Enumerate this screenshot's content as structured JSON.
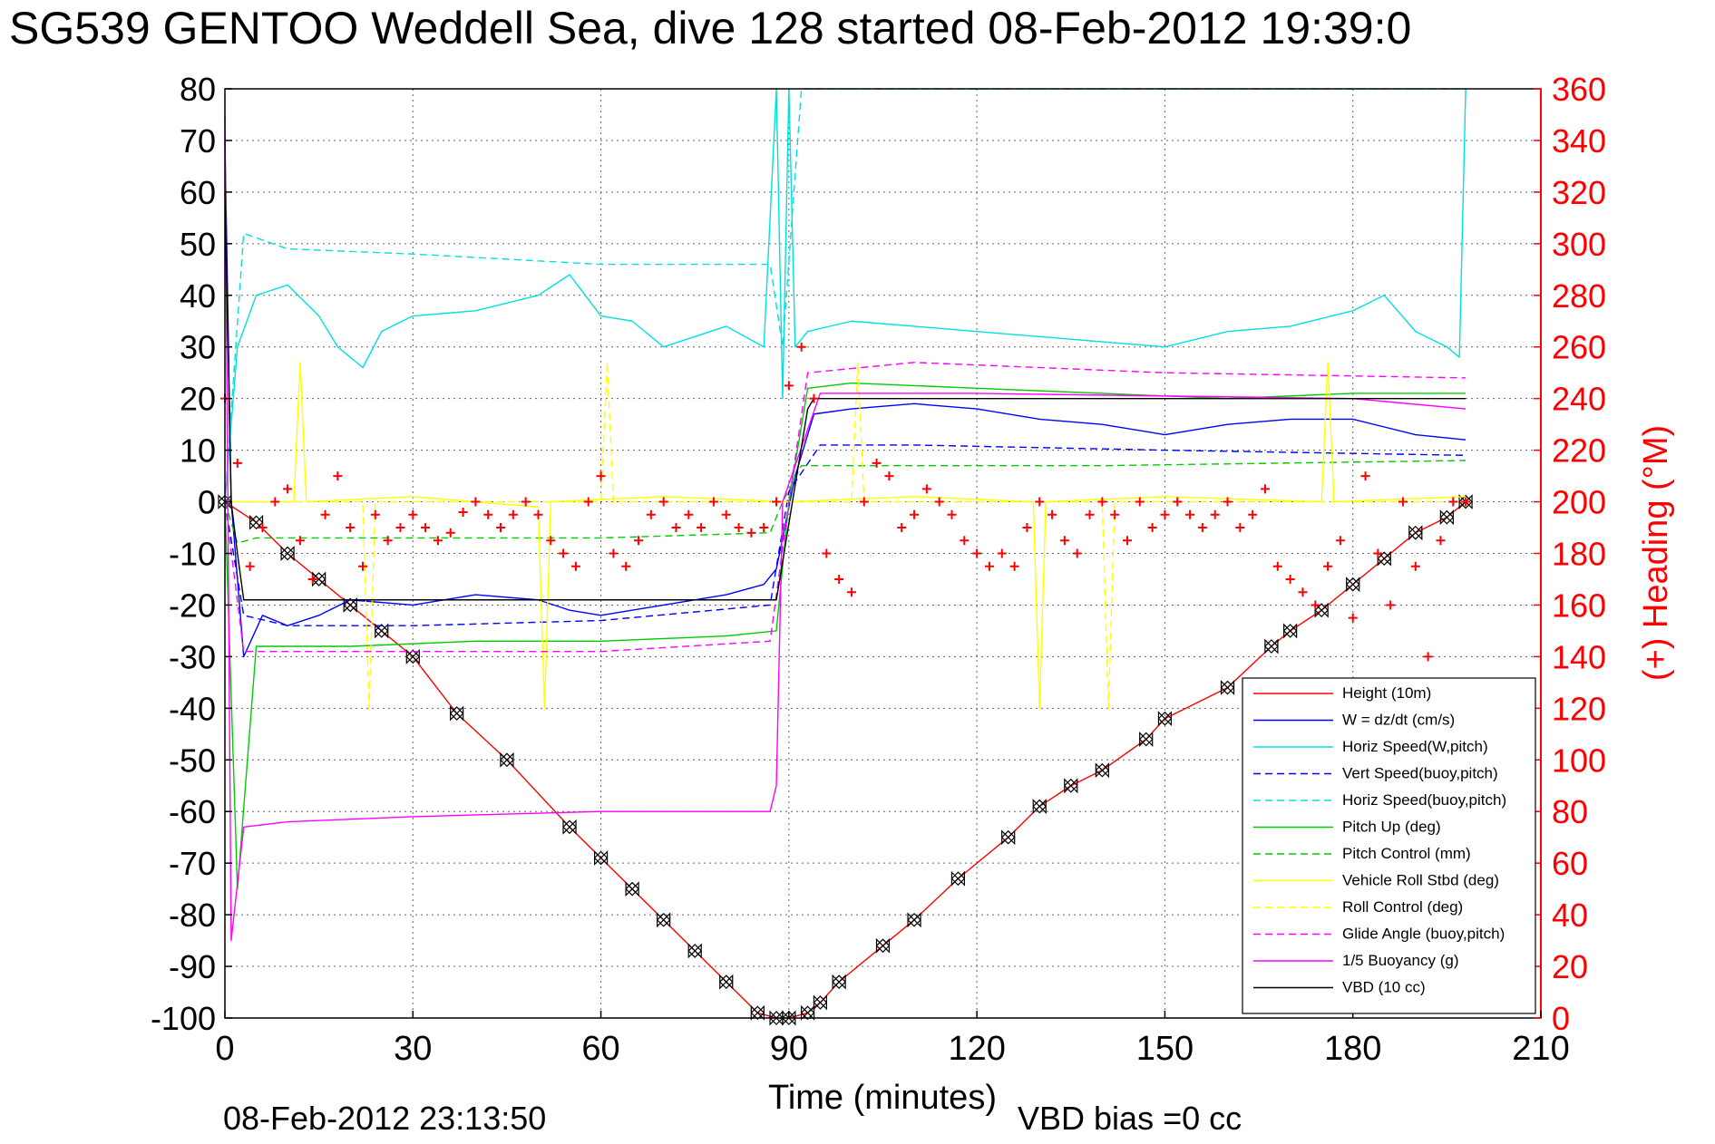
{
  "chart_data": {
    "type": "line",
    "title": "SG539 GENTOO Weddell Sea, dive 128 started 08-Feb-2012 19:39:0",
    "xlabel": "Time (minutes)",
    "ylabel_right": "(+) Heading (°M)",
    "footer_left": "08-Feb-2012 23:13:50",
    "footer_right": "VBD bias =0 cc",
    "xlim": [
      0,
      210
    ],
    "ylim": [
      -100,
      80
    ],
    "y2lim": [
      0,
      360
    ],
    "xticks": [
      "0",
      "30",
      "60",
      "90",
      "120",
      "150",
      "180",
      "210"
    ],
    "yticks": [
      "80",
      "70",
      "60",
      "50",
      "40",
      "30",
      "20",
      "10",
      "0",
      "-10",
      "-20",
      "-30",
      "-40",
      "-50",
      "-60",
      "-70",
      "-80",
      "-90",
      "-100"
    ],
    "y2ticks": [
      "360",
      "340",
      "320",
      "300",
      "280",
      "260",
      "240",
      "220",
      "200",
      "180",
      "160",
      "140",
      "120",
      "100",
      "80",
      "60",
      "40",
      "20",
      "0"
    ],
    "grid": true,
    "legend_position": "bottom-right",
    "series": [
      {
        "name": "Height (10m)",
        "color": "#ff0000",
        "dash": "solid",
        "marker": "bowtie",
        "x": [
          0,
          5,
          10,
          15,
          20,
          25,
          30,
          37,
          45,
          55,
          60,
          65,
          70,
          75,
          80,
          85,
          88,
          90,
          93,
          95,
          98,
          105,
          110,
          117,
          125,
          130,
          135,
          140,
          147,
          150,
          160,
          167,
          170,
          175,
          180,
          185,
          190,
          195,
          198
        ],
        "y": [
          0,
          -4,
          -10,
          -15,
          -20,
          -25,
          -30,
          -41,
          -50,
          -63,
          -69,
          -75,
          -81,
          -87,
          -93,
          -99,
          -100,
          -100,
          -99,
          -97,
          -93,
          -86,
          -81,
          -73,
          -65,
          -59,
          -55,
          -52,
          -46,
          -42,
          -36,
          -28,
          -25,
          -21,
          -16,
          -11,
          -6,
          -3,
          0
        ]
      },
      {
        "name": "W = dz/dt (cm/s)",
        "color": "#0000ff",
        "dash": "solid",
        "x": [
          0,
          1,
          3,
          6,
          10,
          15,
          20,
          30,
          40,
          50,
          55,
          60,
          70,
          80,
          86,
          88,
          91,
          94,
          100,
          110,
          120,
          130,
          140,
          150,
          160,
          170,
          180,
          190,
          198
        ],
        "y": [
          70,
          0,
          -30,
          -22,
          -24,
          -22,
          -19,
          -20,
          -18,
          -19,
          -21,
          -22,
          -20,
          -18,
          -16,
          -13,
          5,
          17,
          18,
          19,
          18,
          16,
          15,
          13,
          15,
          16,
          16,
          13,
          12
        ]
      },
      {
        "name": "Horiz Speed(W,pitch)",
        "color": "#00e0e0",
        "dash": "solid",
        "x": [
          0,
          2,
          5,
          10,
          15,
          18,
          22,
          25,
          30,
          40,
          50,
          55,
          60,
          65,
          70,
          80,
          86,
          88,
          89,
          90,
          91,
          93,
          100,
          110,
          120,
          130,
          140,
          150,
          160,
          170,
          180,
          185,
          190,
          195,
          197,
          198
        ],
        "y": [
          0,
          30,
          40,
          42,
          36,
          30,
          26,
          33,
          36,
          37,
          40,
          44,
          36,
          35,
          30,
          34,
          30,
          80,
          20,
          80,
          30,
          33,
          35,
          34,
          33,
          32,
          31,
          30,
          33,
          34,
          37,
          40,
          33,
          30,
          28,
          80
        ]
      },
      {
        "name": "Vert Speed(buoy,pitch)",
        "color": "#0000ff",
        "dash": "dashed",
        "x": [
          0,
          3,
          10,
          30,
          60,
          87,
          90,
          95,
          110,
          150,
          198
        ],
        "y": [
          0,
          -22,
          -24,
          -24,
          -23,
          -20,
          2,
          11,
          11,
          10,
          9
        ]
      },
      {
        "name": "Horiz Speed(buoy,pitch)",
        "color": "#00e0e0",
        "dash": "dashed",
        "x": [
          0,
          3,
          10,
          30,
          60,
          87,
          89,
          92,
          198
        ],
        "y": [
          0,
          52,
          49,
          48,
          46,
          46,
          30,
          80,
          80
        ]
      },
      {
        "name": "Pitch Up (deg)",
        "color": "#00cc00",
        "dash": "solid",
        "x": [
          0,
          2,
          5,
          20,
          40,
          60,
          80,
          88,
          90,
          93,
          100,
          120,
          140,
          160,
          180,
          198
        ],
        "y": [
          0,
          -75,
          -28,
          -28,
          -27,
          -27,
          -26,
          -25,
          0,
          22,
          23,
          22,
          21,
          20,
          21,
          21
        ]
      },
      {
        "name": "Pitch Control (mm)",
        "color": "#00cc00",
        "dash": "dashed",
        "x": [
          0,
          2,
          5,
          30,
          60,
          87,
          89,
          92,
          100,
          140,
          198
        ],
        "y": [
          0,
          -8,
          -7,
          -7,
          -7,
          -6,
          0,
          7,
          7,
          7,
          8
        ]
      },
      {
        "name": "Vehicle Roll Stbd (deg)",
        "color": "#ffff00",
        "dash": "solid",
        "x": [
          0,
          11,
          12,
          13,
          30,
          50,
          51,
          52,
          70,
          90,
          110,
          129,
          130,
          131,
          150,
          175,
          176,
          177,
          198
        ],
        "y": [
          0,
          0,
          27,
          0,
          1,
          -1,
          -40,
          0,
          1,
          0,
          1,
          0,
          -40,
          0,
          1,
          0,
          27,
          0,
          1
        ]
      },
      {
        "name": "Roll Control (deg)",
        "color": "#ffff00",
        "dash": "dashed",
        "x": [
          0,
          22,
          23,
          24,
          60,
          61,
          62,
          100,
          101,
          102,
          140,
          141,
          142,
          198
        ],
        "y": [
          0,
          0,
          -40,
          0,
          0,
          27,
          0,
          0,
          27,
          0,
          0,
          -40,
          0,
          0
        ]
      },
      {
        "name": "Glide Angle (buoy,pitch)",
        "color": "#ff00ff",
        "dash": "dashed",
        "x": [
          0,
          3,
          10,
          30,
          60,
          87,
          90,
          93,
          110,
          150,
          198
        ],
        "y": [
          0,
          -29,
          -29,
          -29,
          -29,
          -27,
          0,
          25,
          27,
          25,
          24
        ]
      },
      {
        "name": "1/5 Buoyancy (g)",
        "color": "#ff00ff",
        "dash": "solid",
        "x": [
          0,
          1,
          3,
          10,
          30,
          60,
          87,
          88,
          89,
          95,
          120,
          180,
          198
        ],
        "y": [
          75,
          -85,
          -63,
          -62,
          -61,
          -60,
          -60,
          -55,
          0,
          21,
          21,
          20,
          18
        ]
      },
      {
        "name": "VBD (10 cc)",
        "color": "#000000",
        "dash": "solid",
        "x": [
          0,
          1,
          2,
          3,
          87,
          88,
          93,
          94,
          198
        ],
        "y": [
          60,
          0,
          -10,
          -19,
          -19,
          -19,
          18,
          20,
          20
        ]
      }
    ],
    "heading": {
      "name": "(+) Heading",
      "color": "#ff0000",
      "marker": "+",
      "axis": "right",
      "x": [
        0,
        2,
        4,
        6,
        8,
        10,
        12,
        14,
        16,
        18,
        20,
        22,
        24,
        26,
        28,
        30,
        32,
        34,
        36,
        38,
        40,
        42,
        44,
        46,
        48,
        50,
        52,
        54,
        56,
        58,
        60,
        62,
        64,
        66,
        68,
        70,
        72,
        74,
        76,
        78,
        80,
        82,
        84,
        86,
        88,
        90,
        92,
        94,
        96,
        98,
        100,
        102,
        104,
        106,
        108,
        110,
        112,
        114,
        116,
        118,
        120,
        122,
        124,
        126,
        128,
        130,
        132,
        134,
        136,
        138,
        140,
        142,
        144,
        146,
        148,
        150,
        152,
        154,
        156,
        158,
        160,
        162,
        164,
        166,
        168,
        170,
        172,
        174,
        176,
        178,
        180,
        182,
        184,
        186,
        188,
        190,
        192,
        194,
        196,
        198
      ],
      "y": [
        240,
        215,
        175,
        190,
        200,
        205,
        185,
        170,
        195,
        210,
        190,
        175,
        195,
        185,
        190,
        195,
        190,
        185,
        188,
        196,
        200,
        195,
        190,
        195,
        200,
        195,
        185,
        180,
        175,
        200,
        210,
        180,
        175,
        185,
        195,
        200,
        190,
        195,
        190,
        200,
        195,
        190,
        188,
        190,
        200,
        245,
        260,
        240,
        180,
        170,
        165,
        200,
        215,
        210,
        190,
        195,
        205,
        200,
        195,
        185,
        180,
        175,
        180,
        175,
        190,
        200,
        195,
        185,
        180,
        195,
        200,
        195,
        185,
        200,
        190,
        195,
        200,
        195,
        190,
        195,
        200,
        190,
        195,
        205,
        175,
        170,
        165,
        160,
        175,
        185,
        155,
        210,
        180,
        160,
        200,
        175,
        140,
        185,
        200,
        200
      ]
    }
  }
}
